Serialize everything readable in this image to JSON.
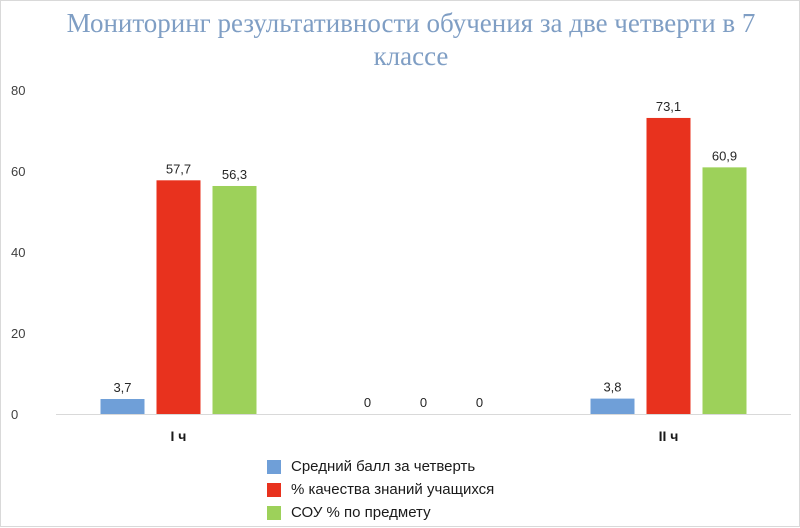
{
  "chart_data": {
    "type": "bar",
    "title": "Мониторинг результативности обучения за две четверти в 7 классе",
    "categories": [
      "I ч",
      "",
      "II ч"
    ],
    "series": [
      {
        "name": "Средний балл за четверть",
        "values": [
          3.7,
          0,
          3.8
        ],
        "labels": [
          "3,7",
          "0",
          "3,8"
        ],
        "color": "#6f9fd8"
      },
      {
        "name": "% качества знаний учащихся",
        "values": [
          57.7,
          0,
          73.1
        ],
        "labels": [
          "57,7",
          "0",
          "73,1"
        ],
        "color": "#e8321e"
      },
      {
        "name": "СОУ % по предмету",
        "values": [
          56.3,
          0,
          60.9
        ],
        "labels": [
          "56,3",
          "0",
          "60,9"
        ],
        "color": "#9dd15a"
      }
    ],
    "yticks": [
      "0",
      "20",
      "40",
      "60",
      "80"
    ],
    "ylim": [
      0,
      80
    ],
    "grid": false,
    "legend": "bottom"
  }
}
